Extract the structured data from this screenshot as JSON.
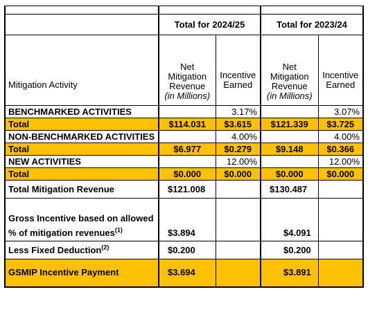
{
  "headers": {
    "group_2024": "Total for 2024/25",
    "group_2023": "Total for 2023/24",
    "activity_col": "Mitigation Activity",
    "net_rev_line1": "Net",
    "net_rev_line2": "Mitigation",
    "net_rev_line3": "Revenue",
    "net_rev_line4": "(in Millions)",
    "incentive_line1": "Incentive",
    "incentive_line2": "Earned"
  },
  "rows": [
    {
      "label": "BENCHMARKED ACTIVITIES",
      "rev24": "",
      "inc24": "3.17%",
      "rev23": "",
      "inc23": "3.07%"
    },
    {
      "label": "Total",
      "rev24": "$114.031",
      "inc24": "$3.615",
      "rev23": "$121.339",
      "inc23": "$3.725"
    },
    {
      "label": "NON-BENCHMARKED ACTIVITIES",
      "rev24": "",
      "inc24": "4.00%",
      "rev23": "",
      "inc23": "4.00%"
    },
    {
      "label": "Total",
      "rev24": "$6.977",
      "inc24": "$0.279",
      "rev23": "$9.148",
      "inc23": "$0.366"
    },
    {
      "label": "NEW ACTIVITIES",
      "rev24": "",
      "inc24": "12.00%",
      "rev23": "",
      "inc23": "12.00%"
    },
    {
      "label": "Total",
      "rev24": "$0.000",
      "inc24": "$0.000",
      "rev23": "$0.000",
      "inc23": "$0.000"
    }
  ],
  "summary": {
    "total_mitigation_revenue_label": "Total Mitigation Revenue",
    "total_mitigation_revenue_24": "$121.008",
    "total_mitigation_revenue_23": "$130.487",
    "gross_incentive_label_line1": "Gross Incentive based on allowed",
    "gross_incentive_label_line2": "% of mitigation revenues",
    "gross_incentive_note": "(1)",
    "gross_incentive_24": "$3.894",
    "gross_incentive_23": "$4.091",
    "fixed_deduction_label": "Less Fixed Deduction",
    "fixed_deduction_note": "(2)",
    "fixed_deduction_24": "$0.200",
    "fixed_deduction_23": "$0.200",
    "payment_label": "GSMIP Incentive Payment",
    "payment_24": "$3.694",
    "payment_23": "$3.891"
  }
}
